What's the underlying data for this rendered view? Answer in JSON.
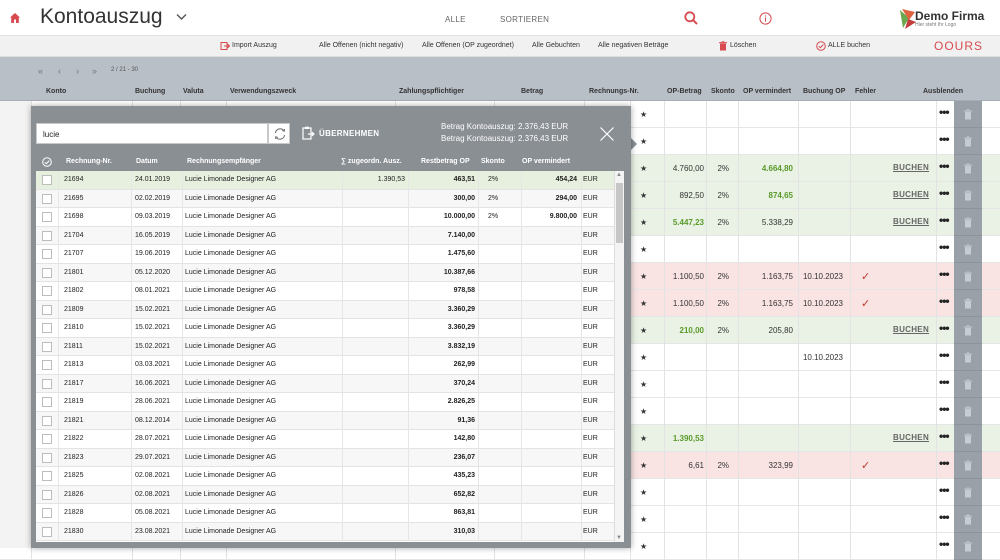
{
  "app": {
    "title": "Kontoauszug",
    "nav": {
      "alle": "ALLE",
      "sortieren": "SORTIEREN"
    },
    "logo": {
      "name": "Demo Firma",
      "tagline": "Hier steht Ihr Logo"
    }
  },
  "toolbar": {
    "import": "Import Auszug",
    "offen_nicht_negativ": "Alle Offenen (nicht negativ)",
    "offen_op": "Alle Offenen (OP zugeordnet)",
    "gebuchten": "Alle Gebuchten",
    "negativ": "Alle negativen Beträge",
    "loeschen": "Löschen",
    "alle_buchen": "ALLE buchen",
    "brand": "OOURS"
  },
  "pager": {
    "text": "2 / 21 - 30"
  },
  "columns": {
    "konto": "Konto",
    "buchung": "Buchung",
    "valuta": "Valuta",
    "verwendungszweck": "Verwendungszweck",
    "zahlungspflichtiger": "Zahlungspflichtiger",
    "betrag": "Betrag",
    "rechnungs_nr": "Rechnungs-Nr.",
    "op_betrag": "OP-Betrag",
    "skonto": "Skonto",
    "op_vermindert": "OP vermindert",
    "buchung_op": "Buchung OP",
    "fehler": "Fehler",
    "ausblenden": "Ausblenden"
  },
  "bg_rows": [
    {
      "tone": "",
      "op_betrag": "",
      "skonto": "",
      "op_vermindert": "",
      "buchung_op": "",
      "buchen": "",
      "fehler": false,
      "op_green": false,
      "opv_green": false
    },
    {
      "tone": "",
      "op_betrag": "",
      "skonto": "",
      "op_vermindert": "",
      "buchung_op": "",
      "buchen": "",
      "fehler": false,
      "op_green": false,
      "opv_green": false
    },
    {
      "tone": "green",
      "op_betrag": "4.760,00",
      "skonto": "2%",
      "op_vermindert": "4.664,80",
      "buchung_op": "",
      "buchen": "BUCHEN",
      "fehler": false,
      "op_green": false,
      "opv_green": true
    },
    {
      "tone": "green",
      "op_betrag": "892,50",
      "skonto": "2%",
      "op_vermindert": "874,65",
      "buchung_op": "",
      "buchen": "BUCHEN",
      "fehler": false,
      "op_green": false,
      "opv_green": true
    },
    {
      "tone": "green",
      "op_betrag": "5.447,23",
      "skonto": "2%",
      "op_vermindert": "5.338,29",
      "buchung_op": "",
      "buchen": "BUCHEN",
      "fehler": false,
      "op_green": true,
      "opv_green": false
    },
    {
      "tone": "",
      "op_betrag": "",
      "skonto": "",
      "op_vermindert": "",
      "buchung_op": "",
      "buchen": "",
      "fehler": false,
      "op_green": false,
      "opv_green": false
    },
    {
      "tone": "pink",
      "op_betrag": "1.100,50",
      "skonto": "2%",
      "op_vermindert": "1.163,75",
      "buchung_op": "10.10.2023",
      "buchen": "",
      "fehler": true,
      "op_green": false,
      "opv_green": false
    },
    {
      "tone": "pink",
      "op_betrag": "1.100,50",
      "skonto": "2%",
      "op_vermindert": "1.163,75",
      "buchung_op": "10.10.2023",
      "buchen": "",
      "fehler": true,
      "op_green": false,
      "opv_green": false
    },
    {
      "tone": "green",
      "op_betrag": "210,00",
      "skonto": "2%",
      "op_vermindert": "205,80",
      "buchung_op": "",
      "buchen": "BUCHEN",
      "fehler": false,
      "op_green": true,
      "opv_green": false
    },
    {
      "tone": "",
      "op_betrag": "",
      "skonto": "",
      "op_vermindert": "",
      "buchung_op": "10.10.2023",
      "buchen": "",
      "fehler": false,
      "op_green": false,
      "opv_green": false
    },
    {
      "tone": "",
      "op_betrag": "",
      "skonto": "",
      "op_vermindert": "",
      "buchung_op": "",
      "buchen": "",
      "fehler": false,
      "op_green": false,
      "opv_green": false
    },
    {
      "tone": "",
      "op_betrag": "",
      "skonto": "",
      "op_vermindert": "",
      "buchung_op": "",
      "buchen": "",
      "fehler": false,
      "op_green": false,
      "opv_green": false
    },
    {
      "tone": "green",
      "op_betrag": "1.390,53",
      "skonto": "",
      "op_vermindert": "",
      "buchung_op": "",
      "buchen": "BUCHEN",
      "fehler": false,
      "op_green": true,
      "opv_green": false
    },
    {
      "tone": "pink",
      "op_betrag": "6,61",
      "skonto": "2%",
      "op_vermindert": "323,99",
      "buchung_op": "",
      "buchen": "",
      "fehler": true,
      "op_green": false,
      "opv_green": false
    },
    {
      "tone": "",
      "op_betrag": "",
      "skonto": "",
      "op_vermindert": "",
      "buchung_op": "",
      "buchen": "",
      "fehler": false,
      "op_green": false,
      "opv_green": false
    },
    {
      "tone": "",
      "op_betrag": "",
      "skonto": "",
      "op_vermindert": "",
      "buchung_op": "",
      "buchen": "",
      "fehler": false,
      "op_green": false,
      "opv_green": false
    },
    {
      "tone": "",
      "op_betrag": "",
      "skonto": "",
      "op_vermindert": "",
      "buchung_op": "",
      "buchen": "",
      "fehler": false,
      "op_green": false,
      "opv_green": false
    }
  ],
  "panel": {
    "search_value": "lucie",
    "uebernehmen": "ÜBERNEHMEN",
    "betrag_line1": "Betrag Kontoauszug: 2.376,43 EUR",
    "betrag_line2": "Betrag Kontoauszug: 2.376,43 EUR",
    "columns": {
      "rechnung_nr": "Rechnung-Nr.",
      "datum": "Datum",
      "empfaenger": "Rechnungsempfänger",
      "zugeordn": "∑ zugeordn. Ausz.",
      "restbetrag": "Restbetrag OP",
      "skonto": "Skonto",
      "op_vermindert": "OP vermindert"
    },
    "rows": [
      {
        "nr": "21694",
        "datum": "24.01.2019",
        "empf": "Lucie Limonade Designer AG",
        "zug": "1.390,53",
        "rest": "463,51",
        "skonto": "2%",
        "opv": "454,24",
        "cur": "EUR",
        "sel": true
      },
      {
        "nr": "21695",
        "datum": "02.02.2019",
        "empf": "Lucie Limonade Designer AG",
        "zug": "",
        "rest": "300,00",
        "skonto": "2%",
        "opv": "294,00",
        "cur": "EUR",
        "sel": false
      },
      {
        "nr": "21698",
        "datum": "09.03.2019",
        "empf": "Lucie Limonade Designer AG",
        "zug": "",
        "rest": "10.000,00",
        "skonto": "2%",
        "opv": "9.800,00",
        "cur": "EUR",
        "sel": false
      },
      {
        "nr": "21704",
        "datum": "16.05.2019",
        "empf": "Lucie Limonade Designer AG",
        "zug": "",
        "rest": "7.140,00",
        "skonto": "",
        "opv": "",
        "cur": "EUR",
        "sel": false
      },
      {
        "nr": "21707",
        "datum": "19.06.2019",
        "empf": "Lucie Limonade Designer AG",
        "zug": "",
        "rest": "1.475,60",
        "skonto": "",
        "opv": "",
        "cur": "EUR",
        "sel": false
      },
      {
        "nr": "21801",
        "datum": "05.12.2020",
        "empf": "Lucie Limonade Designer AG",
        "zug": "",
        "rest": "10.387,66",
        "skonto": "",
        "opv": "",
        "cur": "EUR",
        "sel": false
      },
      {
        "nr": "21802",
        "datum": "08.01.2021",
        "empf": "Lucie Limonade Designer AG",
        "zug": "",
        "rest": "978,58",
        "skonto": "",
        "opv": "",
        "cur": "EUR",
        "sel": false
      },
      {
        "nr": "21809",
        "datum": "15.02.2021",
        "empf": "Lucie Limonade Designer AG",
        "zug": "",
        "rest": "3.360,29",
        "skonto": "",
        "opv": "",
        "cur": "EUR",
        "sel": false
      },
      {
        "nr": "21810",
        "datum": "15.02.2021",
        "empf": "Lucie Limonade Designer AG",
        "zug": "",
        "rest": "3.360,29",
        "skonto": "",
        "opv": "",
        "cur": "EUR",
        "sel": false
      },
      {
        "nr": "21811",
        "datum": "15.02.2021",
        "empf": "Lucie Limonade Designer AG",
        "zug": "",
        "rest": "3.832,19",
        "skonto": "",
        "opv": "",
        "cur": "EUR",
        "sel": false
      },
      {
        "nr": "21813",
        "datum": "03.03.2021",
        "empf": "Lucie Limonade Designer AG",
        "zug": "",
        "rest": "262,99",
        "skonto": "",
        "opv": "",
        "cur": "EUR",
        "sel": false
      },
      {
        "nr": "21817",
        "datum": "16.06.2021",
        "empf": "Lucie Limonade Designer AG",
        "zug": "",
        "rest": "370,24",
        "skonto": "",
        "opv": "",
        "cur": "EUR",
        "sel": false
      },
      {
        "nr": "21819",
        "datum": "28.06.2021",
        "empf": "Lucie Limonade Designer AG",
        "zug": "",
        "rest": "2.826,25",
        "skonto": "",
        "opv": "",
        "cur": "EUR",
        "sel": false
      },
      {
        "nr": "21821",
        "datum": "08.12.2014",
        "empf": "Lucie Limonade Designer AG",
        "zug": "",
        "rest": "91,36",
        "skonto": "",
        "opv": "",
        "cur": "EUR",
        "sel": false
      },
      {
        "nr": "21822",
        "datum": "28.07.2021",
        "empf": "Lucie Limonade Designer AG",
        "zug": "",
        "rest": "142,80",
        "skonto": "",
        "opv": "",
        "cur": "EUR",
        "sel": false
      },
      {
        "nr": "21823",
        "datum": "29.07.2021",
        "empf": "Lucie Limonade Designer AG",
        "zug": "",
        "rest": "236,07",
        "skonto": "",
        "opv": "",
        "cur": "EUR",
        "sel": false
      },
      {
        "nr": "21825",
        "datum": "02.08.2021",
        "empf": "Lucie Limonade Designer AG",
        "zug": "",
        "rest": "435,23",
        "skonto": "",
        "opv": "",
        "cur": "EUR",
        "sel": false
      },
      {
        "nr": "21826",
        "datum": "02.08.2021",
        "empf": "Lucie Limonade Designer AG",
        "zug": "",
        "rest": "652,82",
        "skonto": "",
        "opv": "",
        "cur": "EUR",
        "sel": false
      },
      {
        "nr": "21828",
        "datum": "05.08.2021",
        "empf": "Lucie Limonade Designer AG",
        "zug": "",
        "rest": "863,81",
        "skonto": "",
        "opv": "",
        "cur": "EUR",
        "sel": false
      },
      {
        "nr": "21830",
        "datum": "23.08.2021",
        "empf": "Lucie Limonade Designer AG",
        "zug": "",
        "rest": "310,03",
        "skonto": "",
        "opv": "",
        "cur": "EUR",
        "sel": false
      }
    ]
  },
  "colors": {
    "accent_red": "#d74a50",
    "green_text": "#5a9a2b",
    "green_row": "#e9f2e4",
    "pink_row": "#f9e3e3",
    "panel_bg": "#8a8f94",
    "header_bg": "#b9bfc7"
  },
  "icons": {
    "home": "home-icon",
    "chevron": "chevron-down-icon",
    "search": "search-icon",
    "info": "info-icon",
    "import": "import-icon",
    "delete": "trash-icon",
    "book_all": "check-circle-icon",
    "refresh": "refresh-icon",
    "take_over": "clipboard-icon",
    "close": "close-icon",
    "more": "more-icon",
    "star": "star-icon",
    "error": "check-mark-icon"
  }
}
